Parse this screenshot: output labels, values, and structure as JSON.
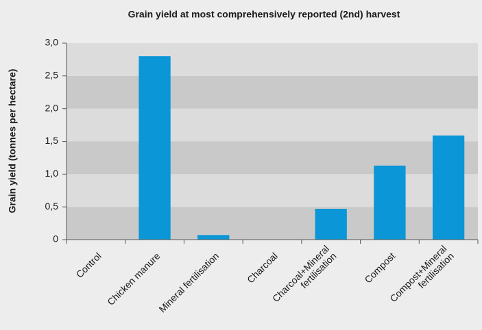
{
  "chart_data": {
    "type": "bar",
    "title": "Grain yield at most comprehensively reported (2nd) harvest",
    "y_label": "Grain yield (tonnes per hectare)",
    "categories": [
      "Control",
      "Chicken manure",
      "Mineral fertilisation",
      "Charcoal",
      "Charcoal+Mineral\nfertilisation",
      "Compost",
      "Compost+Mineral\nfertilisation"
    ],
    "values": [
      0,
      2.8,
      0.07,
      0,
      0.47,
      1.13,
      1.59
    ],
    "color": "#0a96d7",
    "ylim": [
      0,
      3
    ],
    "yticks": [
      0,
      {
        "value": 0.5,
        "label": "0,5"
      },
      {
        "value": 1,
        "label": "1,0"
      },
      {
        "value": 1.5,
        "label": "1,5"
      },
      {
        "value": 2,
        "label": "2,0"
      },
      {
        "value": 2.5,
        "label": "2,5"
      },
      {
        "value": 3,
        "label": "3,0"
      }
    ],
    "grid": true
  }
}
